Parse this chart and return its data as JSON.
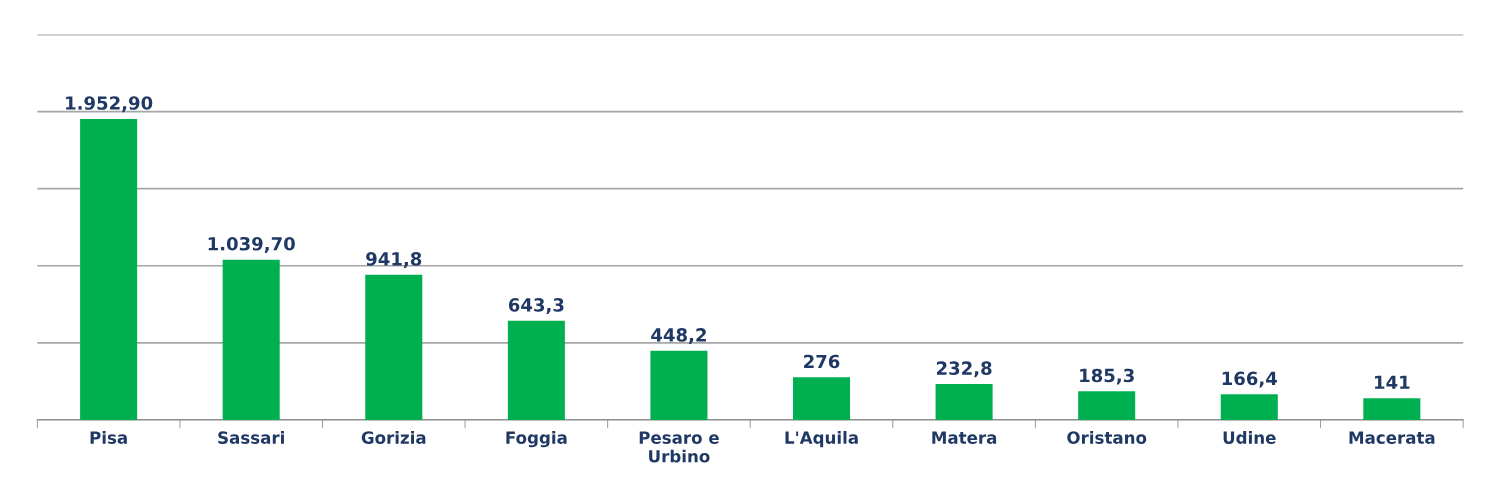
{
  "chart_data": {
    "type": "bar",
    "categories": [
      "Pisa",
      "Sassari",
      "Gorizia",
      "Foggia",
      "Pesaro e\nUrbino",
      "L'Aquila",
      "Matera",
      "Oristano",
      "Udine",
      "Macerata"
    ],
    "values": [
      1952.9,
      1039.7,
      941.8,
      643.3,
      448.2,
      276,
      232.8,
      185.3,
      166.4,
      141
    ],
    "value_labels": [
      "1.952,90",
      "1.039,70",
      "941,8",
      "643,3",
      "448,2",
      "276",
      "232,8",
      "185,3",
      "166,4",
      "141"
    ],
    "color": "#00b050",
    "ylim": [
      0,
      2500
    ],
    "yticks": [
      {
        "value": 0,
        "label": null
      },
      {
        "value": 500,
        "label": null
      },
      {
        "value": 1000,
        "label": null
      },
      {
        "value": 1500,
        "label": null
      },
      {
        "value": 2000,
        "label": null
      },
      {
        "value": 2500,
        "label": null
      }
    ],
    "tick_labels": "x",
    "grid": "y"
  }
}
